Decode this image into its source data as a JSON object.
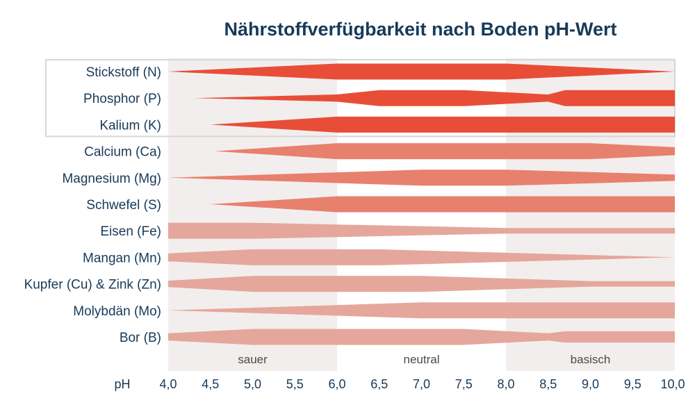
{
  "chart_data": {
    "type": "area",
    "title": "Nährstoffverfügbarkeit nach Boden pH-Wert",
    "xlabel": "pH",
    "xlim": [
      4.0,
      10.0
    ],
    "x_ticks": [
      "4,0",
      "4,5",
      "5,0",
      "5,5",
      "6,0",
      "6,5",
      "7,0",
      "7,5",
      "8,0",
      "8,5",
      "9,0",
      "9,5",
      "10,0"
    ],
    "x_tick_values": [
      4.0,
      4.5,
      5.0,
      5.5,
      6.0,
      6.5,
      7.0,
      7.5,
      8.0,
      8.5,
      9.0,
      9.5,
      10.0
    ],
    "zones": [
      {
        "label": "sauer",
        "from": 4.0,
        "to": 6.0,
        "color": "#f3eeee"
      },
      {
        "label": "neutral",
        "from": 6.0,
        "to": 8.0,
        "color": "#ffffff"
      },
      {
        "label": "basisch",
        "from": 8.0,
        "to": 10.0,
        "color": "#f3eeee"
      }
    ],
    "availability_scale": "relative band thickness 0-1",
    "series": [
      {
        "name": "Stickstoff (N)",
        "group": "primary",
        "color": "#e84e37",
        "points": [
          [
            4.0,
            0
          ],
          [
            6.0,
            1
          ],
          [
            8.0,
            1
          ],
          [
            10.0,
            0
          ]
        ]
      },
      {
        "name": "Phosphor (P)",
        "group": "primary",
        "color": "#e84e37",
        "points": [
          [
            4.3,
            0
          ],
          [
            6.0,
            0.45
          ],
          [
            6.5,
            1
          ],
          [
            7.5,
            1
          ],
          [
            8.5,
            0.45
          ],
          [
            8.7,
            1
          ],
          [
            10.0,
            1
          ]
        ]
      },
      {
        "name": "Kalium (K)",
        "group": "primary",
        "color": "#e84e37",
        "points": [
          [
            4.5,
            0
          ],
          [
            6.0,
            1
          ],
          [
            10.0,
            1
          ]
        ]
      },
      {
        "name": "Calcium (Ca)",
        "group": "secondary",
        "color": "#e8806e",
        "points": [
          [
            4.55,
            0
          ],
          [
            6.0,
            1
          ],
          [
            9.0,
            1
          ],
          [
            10.0,
            0.5
          ]
        ]
      },
      {
        "name": "Magnesium (Mg)",
        "group": "secondary",
        "color": "#e8806e",
        "points": [
          [
            4.0,
            0
          ],
          [
            7.0,
            1
          ],
          [
            8.0,
            1
          ],
          [
            10.0,
            0.4
          ]
        ]
      },
      {
        "name": "Schwefel (S)",
        "group": "secondary",
        "color": "#e8806e",
        "points": [
          [
            4.5,
            0
          ],
          [
            6.0,
            1
          ],
          [
            10.0,
            1
          ]
        ]
      },
      {
        "name": "Eisen (Fe)",
        "group": "micro",
        "color": "#e5a79b",
        "points": [
          [
            4.0,
            1
          ],
          [
            5.0,
            1
          ],
          [
            8.0,
            0.35
          ],
          [
            10.0,
            0.35
          ]
        ]
      },
      {
        "name": "Mangan (Mn)",
        "group": "micro",
        "color": "#e5a79b",
        "points": [
          [
            4.0,
            0.5
          ],
          [
            5.0,
            1
          ],
          [
            6.5,
            1
          ],
          [
            10.0,
            0
          ]
        ]
      },
      {
        "name": "Kupfer (Cu) & Zink (Zn)",
        "group": "micro",
        "color": "#e5a79b",
        "points": [
          [
            4.0,
            0.4
          ],
          [
            5.0,
            1
          ],
          [
            7.0,
            1
          ],
          [
            9.0,
            0.35
          ],
          [
            10.0,
            0.35
          ]
        ]
      },
      {
        "name": "Molybdän (Mo)",
        "group": "micro",
        "color": "#e5a79b",
        "points": [
          [
            4.0,
            0
          ],
          [
            7.0,
            1
          ],
          [
            10.0,
            1
          ]
        ]
      },
      {
        "name": "Bor (B)",
        "group": "micro",
        "color": "#e5a79b",
        "points": [
          [
            4.0,
            0.45
          ],
          [
            5.0,
            1
          ],
          [
            7.5,
            1
          ],
          [
            8.5,
            0.45
          ],
          [
            8.7,
            0.7
          ],
          [
            10.0,
            0.7
          ]
        ]
      }
    ],
    "highlight_box": [
      "Stickstoff (N)",
      "Phosphor (P)",
      "Kalium (K)"
    ],
    "grid": false
  }
}
